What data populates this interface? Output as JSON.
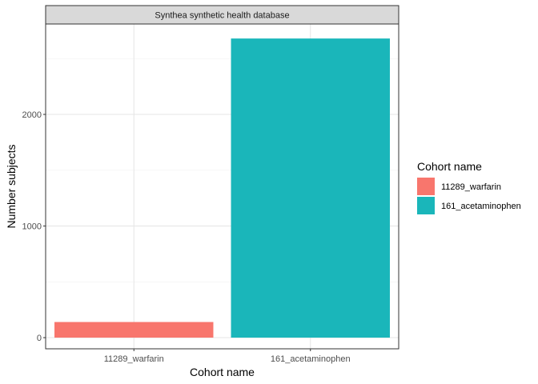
{
  "chart_data": {
    "type": "bar",
    "facet_title": "Synthea synthetic health database",
    "categories": [
      "11289_warfarin",
      "161_acetaminophen"
    ],
    "values": [
      140,
      2680
    ],
    "colors": [
      "#f8766d",
      "#1ab6ba"
    ],
    "xlabel": "Cohort name",
    "ylabel": "Number subjects",
    "ylim": [
      -100,
      2810
    ],
    "yticks": [
      0,
      1000,
      2000
    ],
    "y_minor_ticks": [
      500,
      1500,
      2500
    ],
    "grid": true,
    "legend": {
      "title": "Cohort name",
      "position": "right",
      "entries": [
        "11289_warfarin",
        "161_acetaminophen"
      ]
    }
  }
}
